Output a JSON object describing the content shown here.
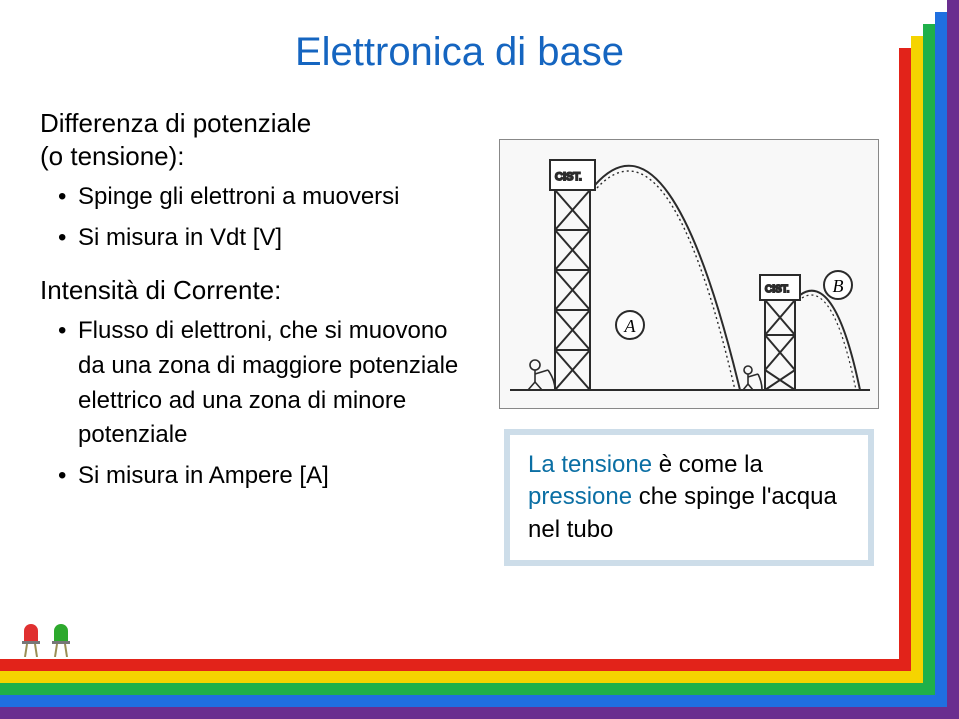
{
  "rainbow_colors": {
    "c1": "#6a2e8f",
    "c2": "#1f6fe0",
    "c3": "#1fb04a",
    "c4": "#f5d400",
    "c5": "#e2231a"
  },
  "title": {
    "text": "Elettronica di base",
    "color": "#1565c0",
    "fontsize": 40
  },
  "section1": {
    "heading_line1": "Differenza di potenziale",
    "heading_line2": "(o tensione):",
    "bullets": [
      "Spinge gli elettroni a muoversi",
      "Si misura in Vdt [V]"
    ]
  },
  "section2": {
    "heading": "Intensità di Corrente:",
    "bullets": [
      "Flusso di elettroni, che si muovono da una zona di maggiore potenziale elettrico ad una zona di minore potenziale",
      "Si misura in Ampere [A]"
    ]
  },
  "caption": {
    "border_color": "#cddde9",
    "text": "La tensione è come la pressione che spinge l'acqua nel tubo",
    "accent_color": "#0b6fa4"
  },
  "diagram": {
    "labels": {
      "A": "A",
      "B": "B",
      "cist": "CIST."
    },
    "bg": "#f8f8f8",
    "line_color": "#2b2b2b"
  },
  "led_icons": {
    "red": "#e03030",
    "green": "#2da92d",
    "lead": "#9a8f55"
  }
}
